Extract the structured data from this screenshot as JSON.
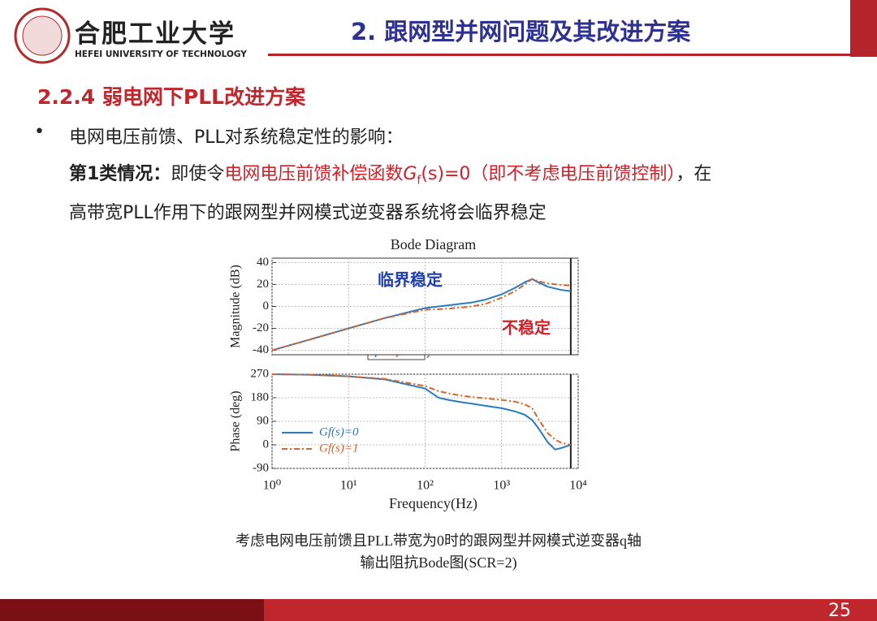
{
  "header": {
    "school_cn": "合肥工业大学",
    "school_en": "HEFEI UNIVERSITY OF TECHNOLOGY",
    "title": "2.  跟网型并网问题及其改进方案"
  },
  "section": "2.2.4 弱电网下PLL改进方案",
  "bullet": "电网电压前馈、PLL对系统稳定性的影响：",
  "para1": {
    "bold": "第1类情况：",
    "lead": "即使令",
    "red": "电网电压前馈补偿函数",
    "func": "G",
    "sub": "f",
    "red_tail": "(s)=0（即不考虑电压前馈控制）",
    "tail": "，在"
  },
  "para2": "高带宽PLL作用下的跟网型并网模式逆变器系统将会临界稳定",
  "chart_data": [
    {
      "type": "line",
      "title": "Bode Diagram",
      "ylabel": "Magnitude (dB)",
      "log_x": true,
      "grid": true,
      "vline": 8000,
      "x": [
        1,
        3,
        10,
        30,
        100,
        150,
        200,
        300,
        400,
        600,
        1000,
        1500,
        2000,
        2500,
        3000,
        4000,
        6000,
        8000
      ],
      "series": [
        {
          "name": "Gf(s)=0",
          "color": "#2b7bbf",
          "values": [
            -40,
            -30.5,
            -20,
            -10.5,
            -1.5,
            0,
            1,
            2.5,
            3.5,
            6,
            11,
            17,
            22,
            25,
            22,
            18,
            15,
            14
          ]
        },
        {
          "name": "Gf(s)=1",
          "color": "#d9652a",
          "values": [
            -40,
            -30.5,
            -20,
            -10.5,
            -3,
            -2.5,
            -2,
            -1,
            0,
            2,
            8,
            14,
            20,
            25,
            23,
            21,
            19.5,
            19
          ]
        }
      ],
      "annotations": [
        "临界稳定",
        "不稳定"
      ],
      "xlim": [
        1,
        10000
      ],
      "ylim": [
        -44,
        44
      ],
      "yticks": [
        -40,
        -20,
        0,
        20,
        40
      ],
      "xticks": [
        {
          "value": 1,
          "label": "10⁰"
        },
        {
          "value": 10,
          "label": "10¹"
        },
        {
          "value": 100,
          "label": "10²"
        },
        {
          "value": 1000,
          "label": "10³"
        },
        {
          "value": 10000,
          "label": "10⁴"
        }
      ]
    },
    {
      "type": "line",
      "ylabel": "Phase (deg)",
      "xlabel": "Frequency(Hz)",
      "log_x": true,
      "grid": true,
      "vline": 8000,
      "legend": "lower left",
      "x": [
        1,
        3,
        10,
        30,
        100,
        150,
        200,
        300,
        400,
        600,
        1000,
        1500,
        2000,
        2500,
        3000,
        4000,
        5000,
        6000,
        8000
      ],
      "series": [
        {
          "name": "Gf(s)=0",
          "color": "#2b7bbf",
          "values": [
            270,
            268,
            262,
            250,
            215,
            180,
            172,
            163,
            158,
            150,
            140,
            128,
            115,
            95,
            65,
            10,
            -18,
            -12,
            0
          ]
        },
        {
          "name": "Gf(s)=1",
          "color": "#d9652a",
          "values": [
            270,
            268,
            262,
            252,
            225,
            205,
            197,
            188,
            183,
            178,
            172,
            165,
            155,
            140,
            100,
            45,
            20,
            8,
            0
          ]
        }
      ],
      "xlim": [
        1,
        10000
      ],
      "ylim": [
        -90,
        270
      ],
      "yticks": [
        -90,
        0,
        90,
        180,
        270
      ],
      "xticks": [
        {
          "value": 1,
          "label": "10⁰"
        },
        {
          "value": 10,
          "label": "10¹"
        },
        {
          "value": 100,
          "label": "10²"
        },
        {
          "value": 1000,
          "label": "10³"
        },
        {
          "value": 10000,
          "label": "10⁴"
        }
      ]
    }
  ],
  "caption": [
    "考虑电网电压前馈且PLL带宽为0时的跟网型并网模式逆变器q轴",
    "输出阻抗Bode图(SCR=2)"
  ],
  "page": "25"
}
